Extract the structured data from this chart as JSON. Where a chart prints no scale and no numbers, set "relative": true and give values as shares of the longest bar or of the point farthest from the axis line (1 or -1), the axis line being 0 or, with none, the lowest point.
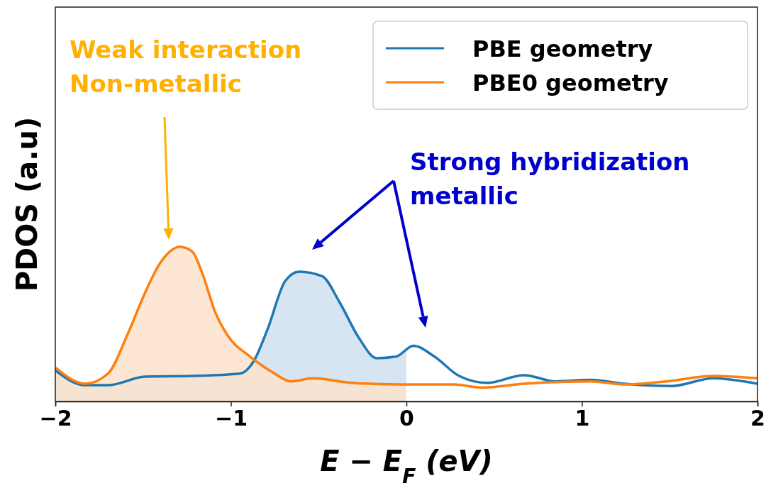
{
  "chart_data": {
    "type": "line",
    "relative": true,
    "xlabel": "E − E$_{F}$ (eV)",
    "ylabel": "PDOS (a.u)",
    "xlim": [
      -2,
      2
    ],
    "xticks": [
      {
        "value": -2,
        "label": "−2"
      },
      {
        "value": -1,
        "label": "−1"
      },
      0,
      1,
      2
    ],
    "legend": "top right",
    "series": [
      {
        "name": "PBE geometry",
        "color": "#1f77b4",
        "x": [
          -2.0,
          -1.83,
          -1.7,
          -1.49,
          -1.22,
          -0.95,
          -0.87,
          -0.79,
          -0.69,
          -0.61,
          -0.48,
          -0.38,
          -0.27,
          -0.17,
          -0.06,
          0.04,
          0.16,
          0.3,
          0.46,
          0.67,
          0.85,
          1.05,
          1.24,
          1.51,
          1.75,
          2.0
        ],
        "values": [
          0.2,
          0.105,
          0.105,
          0.16,
          0.165,
          0.18,
          0.26,
          0.47,
          0.78,
          0.84,
          0.81,
          0.64,
          0.41,
          0.28,
          0.29,
          0.36,
          0.29,
          0.165,
          0.12,
          0.17,
          0.13,
          0.14,
          0.115,
          0.1,
          0.15,
          0.115
        ]
      },
      {
        "name": "PBE0 geometry",
        "color": "#ff7f0e",
        "x": [
          -2.0,
          -1.83,
          -1.7,
          -1.59,
          -1.49,
          -1.4,
          -1.29,
          -1.22,
          -1.16,
          -1.09,
          -1.02,
          -0.89,
          -0.75,
          -0.66,
          -0.53,
          -0.31,
          -0.04,
          0.27,
          0.43,
          0.67,
          1.05,
          1.24,
          1.48,
          1.75,
          2.0
        ],
        "values": [
          0.22,
          0.115,
          0.18,
          0.43,
          0.7,
          0.9,
          1.0,
          0.97,
          0.82,
          0.58,
          0.43,
          0.29,
          0.18,
          0.13,
          0.15,
          0.12,
          0.11,
          0.11,
          0.09,
          0.115,
          0.13,
          0.11,
          0.13,
          0.165,
          0.15
        ]
      },
      {
        "type": "area",
        "color": "#cfe0ee",
        "x": [
          -2.0,
          -1.83,
          -1.7,
          -1.49,
          -1.22,
          -0.95,
          -0.87,
          -0.79,
          -0.69,
          -0.61,
          -0.48,
          -0.38,
          -0.27,
          -0.17,
          -0.06,
          0.0
        ],
        "values": [
          0.2,
          0.105,
          0.105,
          0.16,
          0.165,
          0.18,
          0.26,
          0.47,
          0.78,
          0.84,
          0.81,
          0.64,
          0.41,
          0.28,
          0.29,
          0.33
        ]
      },
      {
        "type": "area",
        "color": "#fde3cd",
        "x": [
          -2.0,
          -1.83,
          -1.7,
          -1.59,
          -1.49,
          -1.4,
          -1.29,
          -1.22,
          -1.16,
          -1.09,
          -1.02,
          -0.89,
          -0.75,
          -0.66,
          -0.53,
          -0.31,
          -0.04,
          0.0
        ],
        "values": [
          0.22,
          0.115,
          0.18,
          0.43,
          0.7,
          0.9,
          1.0,
          0.97,
          0.82,
          0.58,
          0.43,
          0.29,
          0.18,
          0.13,
          0.15,
          0.12,
          0.11,
          0.11
        ]
      }
    ],
    "annotations": [
      "Weak interaction\nNon-metallic",
      "Strong hybridization\nmetallic"
    ]
  }
}
